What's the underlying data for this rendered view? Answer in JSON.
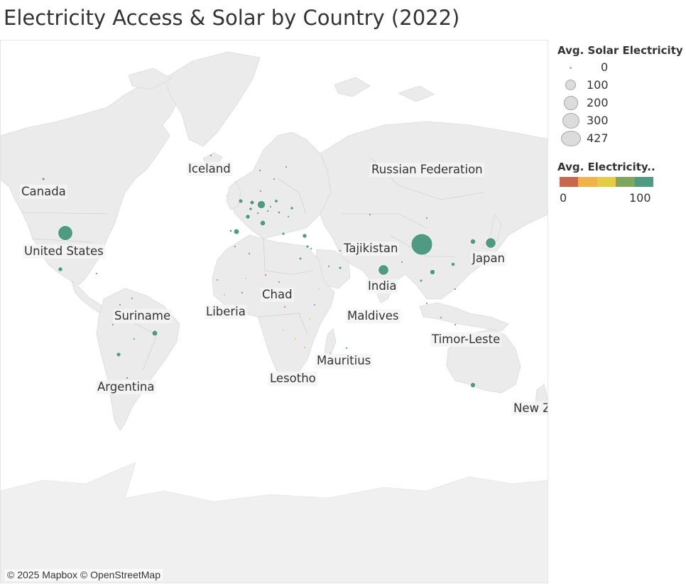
{
  "title": "Electricity Access & Solar by Country (2022)",
  "attribution": "© 2025 Mapbox © OpenStreetMap",
  "map_labels": [
    {
      "name": "canada",
      "text": "Canada"
    },
    {
      "name": "united-states",
      "text": "United States"
    },
    {
      "name": "iceland",
      "text": "Iceland"
    },
    {
      "name": "russian-federation",
      "text": "Russian Federation"
    },
    {
      "name": "tajikistan",
      "text": "Tajikistan"
    },
    {
      "name": "japan",
      "text": "Japan"
    },
    {
      "name": "india",
      "text": "India"
    },
    {
      "name": "chad",
      "text": "Chad"
    },
    {
      "name": "liberia",
      "text": "Liberia"
    },
    {
      "name": "maldives",
      "text": "Maldives"
    },
    {
      "name": "suriname",
      "text": "Suriname"
    },
    {
      "name": "timor-leste",
      "text": "Timor-Leste"
    },
    {
      "name": "mauritius",
      "text": "Mauritius"
    },
    {
      "name": "lesotho",
      "text": "Lesotho"
    },
    {
      "name": "argentina",
      "text": "Argentina"
    },
    {
      "name": "new-zealand",
      "text": "New Z"
    }
  ],
  "legend": {
    "size_title": "Avg. Solar Electricity",
    "size_items": [
      {
        "label": "0",
        "value": 0
      },
      {
        "label": "100",
        "value": 100
      },
      {
        "label": "200",
        "value": 200
      },
      {
        "label": "300",
        "value": 300
      },
      {
        "label": "427",
        "value": 427
      }
    ],
    "color_title": "Avg. Electricity..",
    "color_min": "0",
    "color_max": "100",
    "color_ramp": [
      "#c8674c",
      "#f2b24a",
      "#e6cc45",
      "#7ea65e",
      "#4e9a82"
    ]
  },
  "colors": {
    "high_access": "#4e9a82",
    "mid_access": "#e6cc45",
    "low_access": "#f2b24a"
  },
  "markers": [
    {
      "name": "china",
      "solar": 427,
      "access": 100
    },
    {
      "name": "united-states",
      "solar": 204,
      "access": 100
    },
    {
      "name": "india",
      "solar": 102,
      "access": 99
    },
    {
      "name": "japan",
      "solar": 99,
      "access": 100
    },
    {
      "name": "germany",
      "solar": 61,
      "access": 100
    },
    {
      "name": "brazil",
      "solar": 30,
      "access": 100
    },
    {
      "name": "spain",
      "solar": 28,
      "access": 100
    },
    {
      "name": "australia",
      "solar": 25,
      "access": 100
    },
    {
      "name": "vietnam",
      "solar": 26,
      "access": 100
    },
    {
      "name": "south-korea",
      "solar": 27,
      "access": 100
    },
    {
      "name": "italy",
      "solar": 28,
      "access": 100
    },
    {
      "name": "france",
      "solar": 20,
      "access": 100
    },
    {
      "name": "netherlands",
      "solar": 18,
      "access": 100
    },
    {
      "name": "united-kingdom",
      "solar": 14,
      "access": 100
    },
    {
      "name": "mexico",
      "solar": 16,
      "access": 99
    },
    {
      "name": "turkey",
      "solar": 15,
      "access": 100
    },
    {
      "name": "chile",
      "solar": 14,
      "access": 100
    },
    {
      "name": "poland",
      "solar": 8,
      "access": 100
    },
    {
      "name": "canada",
      "solar": 5,
      "access": 100
    },
    {
      "name": "ukraine",
      "solar": 7,
      "access": 100
    },
    {
      "name": "belgium",
      "solar": 7,
      "access": 100
    },
    {
      "name": "israel",
      "solar": 6,
      "access": 100
    },
    {
      "name": "egypt",
      "solar": 5,
      "access": 100
    },
    {
      "name": "south-africa",
      "solar": 6,
      "access": 86
    },
    {
      "name": "pakistan",
      "solar": 4,
      "access": 95
    },
    {
      "name": "thailand",
      "solar": 5,
      "access": 100
    },
    {
      "name": "philippines",
      "solar": 2,
      "access": 97
    },
    {
      "name": "argentina",
      "solar": 3,
      "access": 100
    },
    {
      "name": "greece",
      "solar": 6,
      "access": 100
    },
    {
      "name": "portugal",
      "solar": 4,
      "access": 100
    },
    {
      "name": "hungary",
      "solar": 4,
      "access": 100
    },
    {
      "name": "romania",
      "solar": 2,
      "access": 100
    },
    {
      "name": "austria",
      "solar": 3,
      "access": 100
    },
    {
      "name": "switzerland",
      "solar": 3,
      "access": 100
    },
    {
      "name": "denmark",
      "solar": 2,
      "access": 100
    },
    {
      "name": "czechia",
      "solar": 2,
      "access": 100
    },
    {
      "name": "sweden",
      "solar": 1,
      "access": 100
    },
    {
      "name": "morocco",
      "solar": 1,
      "access": 100
    },
    {
      "name": "algeria",
      "solar": 1,
      "access": 100
    },
    {
      "name": "saudi-arabia",
      "solar": 1,
      "access": 100
    },
    {
      "name": "uae",
      "solar": 6,
      "access": 100
    },
    {
      "name": "iran",
      "solar": 1,
      "access": 100
    },
    {
      "name": "kazakhstan",
      "solar": 2,
      "access": 100
    },
    {
      "name": "russia",
      "solar": 2,
      "access": 100
    },
    {
      "name": "malaysia",
      "solar": 2,
      "access": 100
    },
    {
      "name": "indonesia",
      "solar": 1,
      "access": 97
    },
    {
      "name": "jordan",
      "solar": 3,
      "access": 100
    },
    {
      "name": "taiwan",
      "solar": 11,
      "access": 100
    },
    {
      "name": "bangladesh",
      "solar": 1,
      "access": 99
    },
    {
      "name": "kenya",
      "solar": 1,
      "access": 76
    },
    {
      "name": "nigeria",
      "solar": 0,
      "access": 60
    },
    {
      "name": "ethiopia",
      "solar": 0,
      "access": 55
    },
    {
      "name": "congo-dr",
      "solar": 0,
      "access": 21
    },
    {
      "name": "tanzania",
      "solar": 0,
      "access": 46
    },
    {
      "name": "mozambique",
      "solar": 0,
      "access": 33
    },
    {
      "name": "madagascar",
      "solar": 0,
      "access": 36
    },
    {
      "name": "chad",
      "solar": 0,
      "access": 11
    },
    {
      "name": "niger",
      "solar": 0,
      "access": 19
    },
    {
      "name": "mali",
      "solar": 0,
      "access": 53
    },
    {
      "name": "liberia",
      "solar": 0,
      "access": 31
    },
    {
      "name": "ghana",
      "solar": 0,
      "access": 88
    },
    {
      "name": "senegal",
      "solar": 0,
      "access": 70
    },
    {
      "name": "angola",
      "solar": 0,
      "access": 48
    },
    {
      "name": "zambia",
      "solar": 0,
      "access": 47
    },
    {
      "name": "iceland",
      "solar": 0,
      "access": 100
    },
    {
      "name": "norway",
      "solar": 0,
      "access": 100
    },
    {
      "name": "finland",
      "solar": 0,
      "access": 100
    },
    {
      "name": "peru",
      "solar": 1,
      "access": 95
    },
    {
      "name": "colombia",
      "solar": 1,
      "access": 100
    },
    {
      "name": "venezuela",
      "solar": 0,
      "access": 100
    },
    {
      "name": "bolivia",
      "solar": 0,
      "access": 93
    },
    {
      "name": "cuba",
      "solar": 0,
      "access": 100
    },
    {
      "name": "new-zealand",
      "solar": 0,
      "access": 100
    },
    {
      "name": "mongolia",
      "solar": 0,
      "access": 100
    },
    {
      "name": "mauritius",
      "solar": 0,
      "access": 100
    },
    {
      "name": "maldives",
      "solar": 0,
      "access": 100
    },
    {
      "name": "timor-leste",
      "solar": 0,
      "access": 100
    }
  ]
}
